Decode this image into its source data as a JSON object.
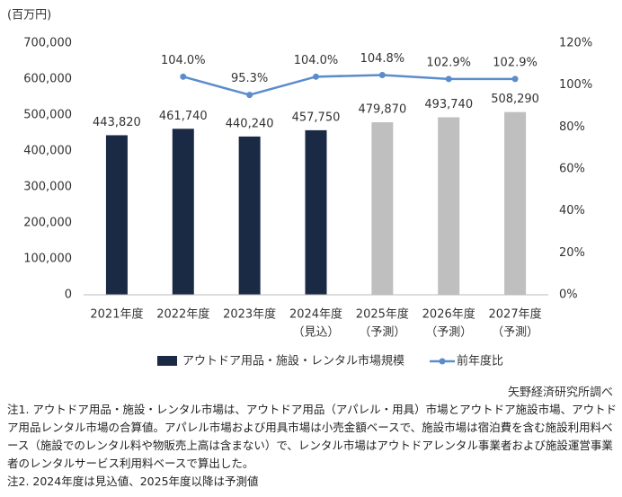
{
  "chart_data": {
    "type": "bar",
    "y_axis_label": "(百万円)",
    "categories": [
      "2021年度",
      "2022年度",
      "2023年度",
      "2024年度",
      "2025年度",
      "2026年度",
      "2027年度"
    ],
    "category_notes": [
      null,
      null,
      null,
      "（見込）",
      "（予測）",
      "（予測）",
      "（予測）"
    ],
    "series": [
      {
        "name": "アウトドア用品・施設・レンタル市場規模",
        "type": "bar",
        "color": "#1b2a44",
        "point_colors": [
          "#1b2a44",
          "#1b2a44",
          "#1b2a44",
          "#1b2a44",
          "#bfbfbf",
          "#bfbfbf",
          "#bfbfbf"
        ],
        "values": [
          443820,
          461740,
          440240,
          457750,
          479870,
          493740,
          508290
        ],
        "value_labels": [
          "443,820",
          "461,740",
          "440,240",
          "457,750",
          "479,870",
          "493,740",
          "508,290"
        ]
      },
      {
        "name": "前年度比",
        "type": "line",
        "axis": "y2",
        "color": "#5b8ccc",
        "values": [
          null,
          104.0,
          95.3,
          104.0,
          104.8,
          102.9,
          102.9
        ],
        "value_labels": [
          null,
          "104.0%",
          "95.3%",
          "104.0%",
          "104.8%",
          "102.9%",
          "102.9%"
        ]
      }
    ],
    "ylim": [
      0,
      700000
    ],
    "yticks": [
      0,
      {
        "value": 100000,
        "label": "100,000"
      },
      {
        "value": 200000,
        "label": "200,000"
      },
      {
        "value": 300000,
        "label": "300,000"
      },
      {
        "value": 400000,
        "label": "400,000"
      },
      {
        "value": 500000,
        "label": "500,000"
      },
      {
        "value": 600000,
        "label": "600,000"
      },
      {
        "value": 700000,
        "label": "700,000"
      }
    ],
    "y2lim": [
      0,
      120
    ],
    "y2ticks": [
      {
        "value": 0,
        "label": "0%"
      },
      {
        "value": 20,
        "label": "20%"
      },
      {
        "value": 40,
        "label": "40%"
      },
      {
        "value": 60,
        "label": "60%"
      },
      {
        "value": 80,
        "label": "80%"
      },
      {
        "value": 100,
        "label": "100%"
      },
      {
        "value": 120,
        "label": "120%"
      }
    ],
    "grid": false,
    "source": "矢野経済研究所調べ",
    "notes": [
      "注1. アウトドア用品・施設・レンタル市場は、アウトドア用品（アパレル・用具）市場とアウトドア施設市場、アウトドア用品レンタル市場の合算値。アパレル市場および用具市場は小売金額ベースで、施設市場は宿泊費を含む施設利用料ベース（施設でのレンタル料や物販売上高は含まない）で、レンタル市場はアウトドアレンタル事業者および施設運営事業者のレンタルサービス利用料ベースで算出した。",
      "注2. 2024年度は見込値、2025年度以降は予測値"
    ]
  }
}
